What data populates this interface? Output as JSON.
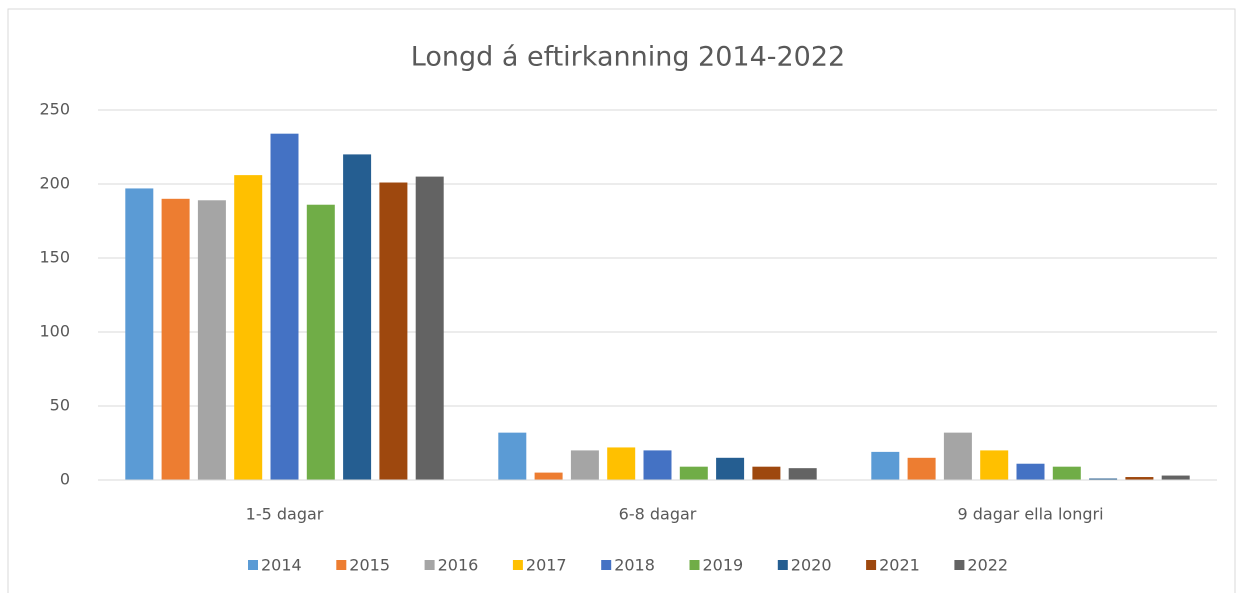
{
  "chart_data": {
    "type": "bar",
    "title": "Longd á eftirkanning 2014-2022",
    "categories": [
      "1-5 dagar",
      "6-8 dagar",
      "9 dagar ella longri"
    ],
    "series": [
      {
        "name": "2014",
        "color": "#5b9bd5",
        "values": [
          197,
          32,
          19
        ]
      },
      {
        "name": "2015",
        "color": "#ed7d31",
        "values": [
          190,
          5,
          15
        ]
      },
      {
        "name": "2016",
        "color": "#a5a5a5",
        "values": [
          189,
          20,
          32
        ]
      },
      {
        "name": "2017",
        "color": "#ffc000",
        "values": [
          206,
          22,
          20
        ]
      },
      {
        "name": "2018",
        "color": "#4472c4",
        "values": [
          234,
          20,
          11
        ]
      },
      {
        "name": "2019",
        "color": "#70ad47",
        "values": [
          186,
          9,
          9
        ]
      },
      {
        "name": "2020",
        "color": "#255e91",
        "values": [
          220,
          15,
          1
        ]
      },
      {
        "name": "2021",
        "color": "#9e480e",
        "values": [
          201,
          9,
          2
        ]
      },
      {
        "name": "2022",
        "color": "#636363",
        "values": [
          205,
          8,
          3
        ]
      }
    ],
    "ylim": [
      0,
      250
    ],
    "yticks": [
      0,
      50,
      100,
      150,
      200,
      250
    ],
    "grid": true,
    "legend": "bottom"
  }
}
